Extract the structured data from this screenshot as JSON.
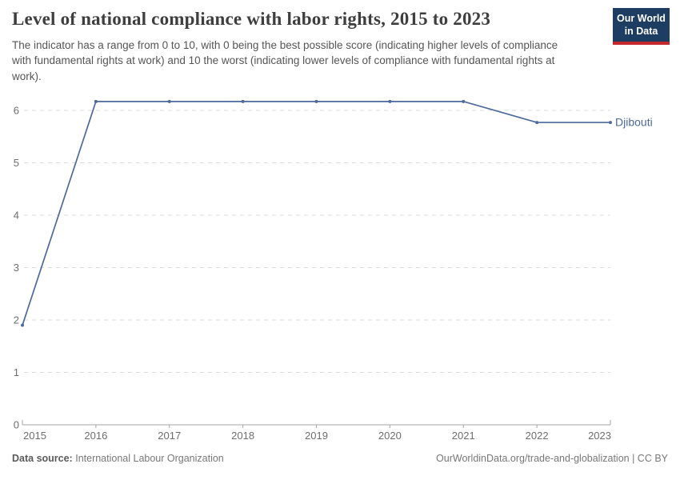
{
  "header": {
    "title": "Level of national compliance with labor rights, 2015 to 2023",
    "subtitle": "The indicator has a range from 0 to 10, with 0 being the best possible score (indicating higher levels of compliance with fundamental rights at work) and 10 the worst (indicating lower levels of compliance with fundamental rights at work).",
    "logo": {
      "line1": "Our World",
      "line2": "in Data",
      "bg_color": "#1d3d63",
      "bar_color": "#c5282d"
    }
  },
  "chart_data": {
    "type": "line",
    "title": "Level of national compliance with labor rights, 2015 to 2023",
    "x": [
      2015,
      2016,
      2017,
      2018,
      2019,
      2020,
      2021,
      2022,
      2023
    ],
    "series": [
      {
        "name": "Djibouti",
        "values": [
          1.9,
          6.17,
          6.17,
          6.17,
          6.17,
          6.17,
          6.17,
          5.77,
          5.77
        ],
        "color": "#4c6a9c"
      }
    ],
    "xlabel": "",
    "ylabel": "",
    "ylim": [
      0,
      6.6
    ],
    "yticks": [
      0,
      1,
      2,
      3,
      4,
      5,
      6
    ],
    "grid": "horizontal-dashed",
    "legend_position": "end-of-line-label",
    "colors": {
      "grid": "#dcdcdc",
      "axis": "#a5a5a5",
      "tick_text": "#6e6e6e"
    }
  },
  "footer": {
    "datasource_label": "Data source:",
    "datasource_value": "International Labour Organization",
    "credit": "OurWorldinData.org/trade-and-globalization | CC BY"
  }
}
